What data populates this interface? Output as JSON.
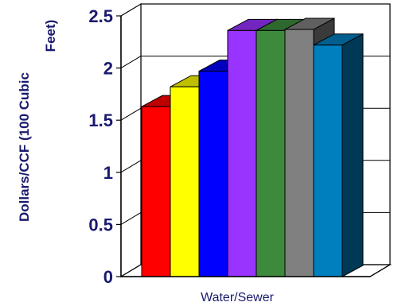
{
  "chart_data": {
    "type": "bar",
    "categories": [
      "Water/Sewer"
    ],
    "series": [
      {
        "values": [
          1.63
        ],
        "color": "#ff0000"
      },
      {
        "values": [
          1.82
        ],
        "color": "#ffff00"
      },
      {
        "values": [
          1.97
        ],
        "color": "#0000ff"
      },
      {
        "values": [
          2.36
        ],
        "color": "#9933ff"
      },
      {
        "values": [
          2.36
        ],
        "color": "#3d8a3d"
      },
      {
        "values": [
          2.37
        ],
        "color": "#808080"
      },
      {
        "values": [
          2.22
        ],
        "color": "#007fbf"
      }
    ],
    "title": "",
    "xlabel": "Water/Sewer",
    "ylabel": "Dollars/CCF (100 Cubic Feet)",
    "ylabel_lines": [
      "Dollars/CCF (100 Cubic",
      "Feet)"
    ],
    "ylim": [
      0,
      2.5
    ],
    "yticks": [
      0,
      0.5,
      1,
      1.5,
      2,
      2.5
    ],
    "ytick_labels": [
      "0",
      "0.5",
      "1",
      "1.5",
      "2",
      "2.5"
    ],
    "grid": "horizontal",
    "style": "3d"
  }
}
